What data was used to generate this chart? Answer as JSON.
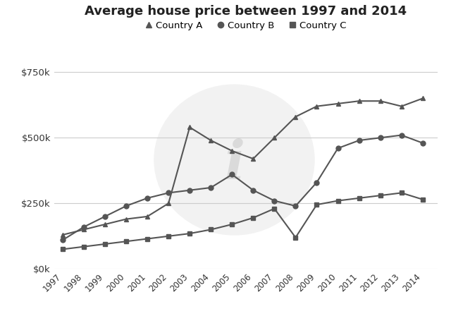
{
  "title": "Average house price between 1997 and 2014",
  "years": [
    1997,
    1998,
    1999,
    2000,
    2001,
    2002,
    2003,
    2004,
    2005,
    2006,
    2007,
    2008,
    2009,
    2010,
    2011,
    2012,
    2013,
    2014
  ],
  "country_a": [
    130000,
    150000,
    170000,
    190000,
    200000,
    250000,
    540000,
    490000,
    450000,
    420000,
    500000,
    580000,
    620000,
    630000,
    640000,
    640000,
    620000,
    650000
  ],
  "country_b": [
    110000,
    160000,
    200000,
    240000,
    270000,
    290000,
    300000,
    310000,
    360000,
    300000,
    260000,
    240000,
    330000,
    460000,
    490000,
    500000,
    510000,
    480000
  ],
  "country_c": [
    75000,
    85000,
    95000,
    105000,
    115000,
    125000,
    135000,
    150000,
    170000,
    195000,
    230000,
    120000,
    245000,
    260000,
    270000,
    280000,
    290000,
    265000
  ],
  "line_color": "#555555",
  "bg_color": "#ffffff",
  "grid_color": "#cccccc",
  "ylim": [
    0,
    800000
  ],
  "yticks": [
    0,
    250000,
    500000,
    750000
  ],
  "ytick_labels": [
    "$0k",
    "$250k",
    "$500k",
    "$750k"
  ]
}
